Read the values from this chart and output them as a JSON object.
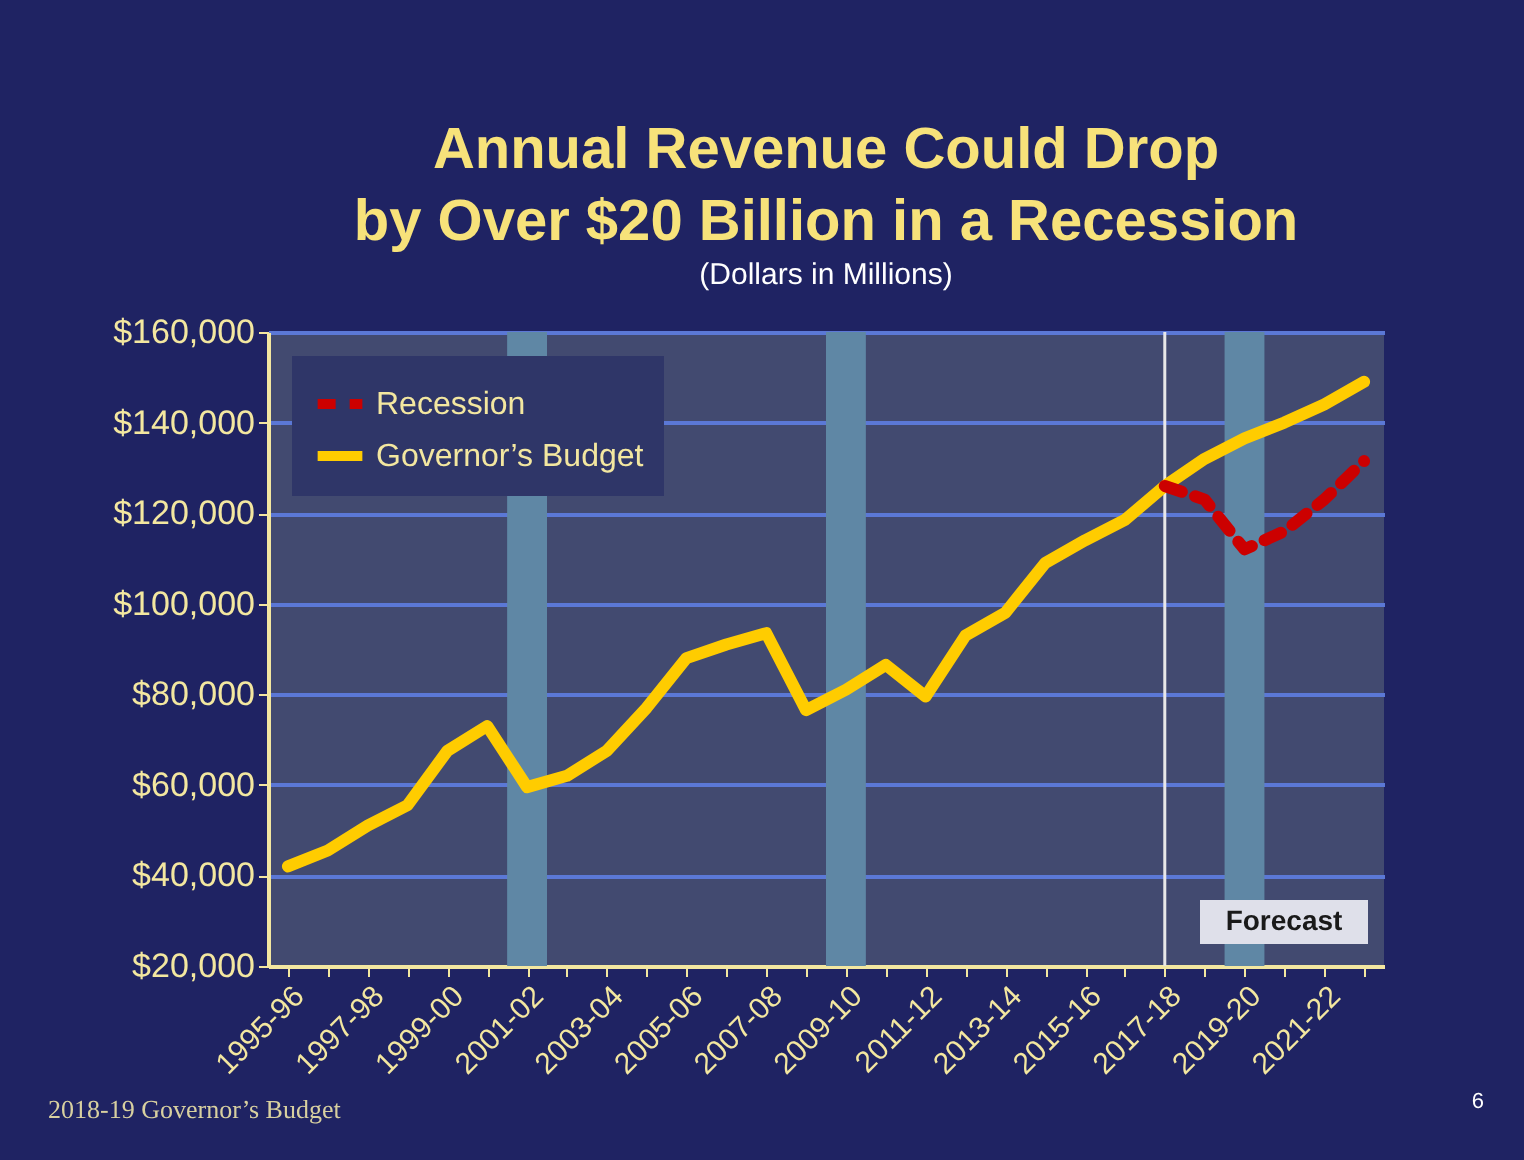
{
  "chart_data": {
    "type": "line",
    "title": [
      "Annual Revenue Could Drop",
      "by Over $20 Billion  in a Recession"
    ],
    "subtitle": "(Dollars in Millions)",
    "categories": [
      "1995-96",
      null,
      "1997-98",
      null,
      "1999-00",
      null,
      "2001-02",
      null,
      "2003-04",
      null,
      "2005-06",
      null,
      "2007-08",
      null,
      "2009-10",
      null,
      "2011-12",
      null,
      "2013-14",
      null,
      "2015-16",
      null,
      "2017-18",
      null,
      "2019-20",
      null,
      "2021-22",
      null
    ],
    "series": [
      {
        "name": "Recession",
        "color": "#cc0000",
        "line_style": "dashed",
        "values": [
          null,
          null,
          null,
          null,
          null,
          null,
          null,
          null,
          null,
          null,
          null,
          null,
          null,
          null,
          null,
          null,
          null,
          null,
          null,
          null,
          null,
          null,
          126000,
          123000,
          112000,
          116000,
          123000,
          131500
        ]
      },
      {
        "name": "Governor’s Budget",
        "color": "#ffcc00",
        "line_style": "solid",
        "values": [
          42000,
          45500,
          51000,
          55500,
          67500,
          73000,
          59500,
          62000,
          67500,
          77000,
          88000,
          91000,
          93500,
          76500,
          81000,
          86500,
          79500,
          93000,
          98000,
          109000,
          114000,
          118500,
          126000,
          132000,
          136500,
          140000,
          144000,
          149000
        ]
      }
    ],
    "ylim": [
      20000,
      160000
    ],
    "yticks": [
      {
        "value": 20000,
        "label": "$20,000"
      },
      {
        "value": 40000,
        "label": "$40,000"
      },
      {
        "value": 60000,
        "label": "$60,000"
      },
      {
        "value": 80000,
        "label": "$80,000"
      },
      {
        "value": 100000,
        "label": "$100,000"
      },
      {
        "value": 120000,
        "label": "$120,000"
      },
      {
        "value": 140000,
        "label": "$140,000"
      },
      {
        "value": 160000,
        "label": "$160,000"
      }
    ],
    "grid": "y",
    "legend": "top left",
    "marker": "none",
    "bands": [
      {
        "axis": "x",
        "from": "2001-02",
        "to": "2001-02",
        "color": "#5f87a5"
      },
      {
        "axis": "x",
        "from": "2009-10",
        "to": "2009-10",
        "color": "#5f87a5"
      },
      {
        "axis": "x",
        "from": "2019-20",
        "to": "2019-20",
        "color": "#5f87a5"
      }
    ],
    "ref_lines": [
      {
        "axis": "x",
        "value": "2017-18",
        "color": "#e8e8e8"
      }
    ],
    "annotations": [
      "Forecast",
      "2018-19 Governor’s Budget",
      "6"
    ]
  }
}
